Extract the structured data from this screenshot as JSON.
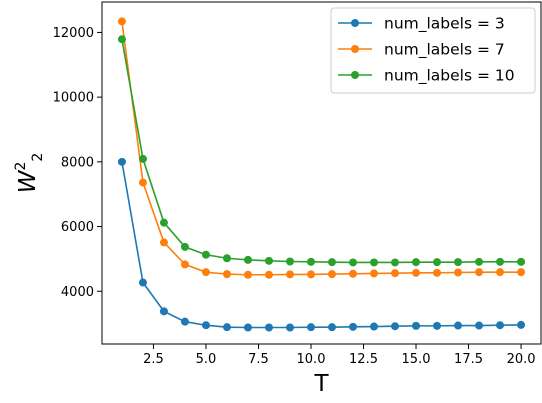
{
  "chart_data": {
    "type": "line",
    "xlabel": "T",
    "ylabel": "W_2^2",
    "ylabel_base": "W",
    "ylabel_sub": "2",
    "ylabel_sup": "2",
    "xlim": [
      0.05,
      20.95
    ],
    "ylim": [
      2370,
      12940
    ],
    "grid": false,
    "legend_position": "top-right",
    "xticks": [
      2.5,
      5.0,
      7.5,
      10.0,
      12.5,
      15.0,
      17.5,
      20.0
    ],
    "xtick_labels": [
      "2.5",
      "5.0",
      "7.5",
      "10.0",
      "12.5",
      "15.0",
      "17.5",
      "20.0"
    ],
    "yticks": [
      4000,
      6000,
      8000,
      10000,
      12000
    ],
    "ytick_labels": [
      "4000",
      "6000",
      "8000",
      "10000",
      "12000"
    ],
    "x": [
      1,
      2,
      3,
      4,
      5,
      6,
      7,
      8,
      9,
      10,
      11,
      12,
      13,
      14,
      15,
      16,
      17,
      18,
      19,
      20
    ],
    "series": [
      {
        "name": "num_labels = 3",
        "color": "#1f77b4",
        "values": [
          8000,
          4270,
          3380,
          3060,
          2950,
          2890,
          2880,
          2880,
          2880,
          2890,
          2890,
          2900,
          2910,
          2920,
          2930,
          2930,
          2940,
          2940,
          2950,
          2960
        ]
      },
      {
        "name": "num_labels = 7",
        "color": "#ff7f0e",
        "values": [
          12340,
          7360,
          5510,
          4830,
          4590,
          4530,
          4510,
          4510,
          4520,
          4520,
          4530,
          4540,
          4550,
          4560,
          4570,
          4570,
          4580,
          4590,
          4590,
          4590
        ]
      },
      {
        "name": "num_labels = 10",
        "color": "#2ca02c",
        "values": [
          11790,
          8090,
          6120,
          5370,
          5130,
          5020,
          4970,
          4940,
          4920,
          4910,
          4900,
          4890,
          4890,
          4890,
          4900,
          4900,
          4900,
          4910,
          4910,
          4910
        ]
      }
    ]
  }
}
